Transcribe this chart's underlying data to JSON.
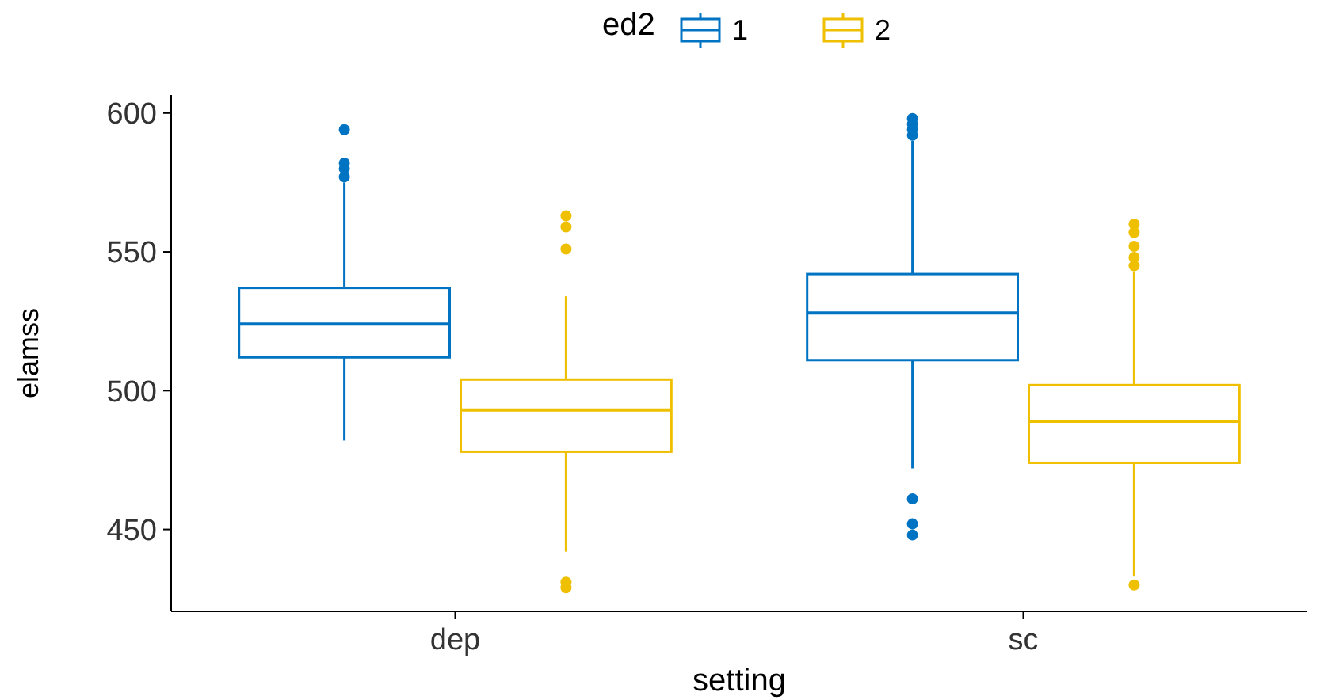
{
  "chart_data": {
    "type": "box",
    "xlabel": "setting",
    "ylabel": "elamss",
    "legend_title": "ed2",
    "legend": "top",
    "grid": false,
    "categories": [
      "dep",
      "sc"
    ],
    "ylim": [
      420.5,
      606.5
    ],
    "yticks": [
      450,
      500,
      550,
      600
    ],
    "series": [
      {
        "name": "1",
        "color": "#0073c2",
        "boxes": [
          {
            "low": 482,
            "q1": 512,
            "median": 524,
            "q3": 537,
            "high": 575,
            "outliers": [
              577,
              580,
              582,
              594
            ]
          },
          {
            "low": 472,
            "q1": 511,
            "median": 528,
            "q3": 542,
            "high": 590,
            "outliers": [
              592,
              594,
              596,
              598,
              461,
              452,
              448
            ]
          }
        ]
      },
      {
        "name": "2",
        "color": "#efc000",
        "boxes": [
          {
            "low": 442,
            "q1": 478,
            "median": 493,
            "q3": 504,
            "high": 534,
            "outliers": [
              551,
              559,
              563,
              431,
              429
            ]
          },
          {
            "low": 433,
            "q1": 474,
            "median": 489,
            "q3": 502,
            "high": 543,
            "outliers": [
              545,
              548,
              552,
              557,
              560,
              430
            ]
          }
        ]
      }
    ]
  }
}
